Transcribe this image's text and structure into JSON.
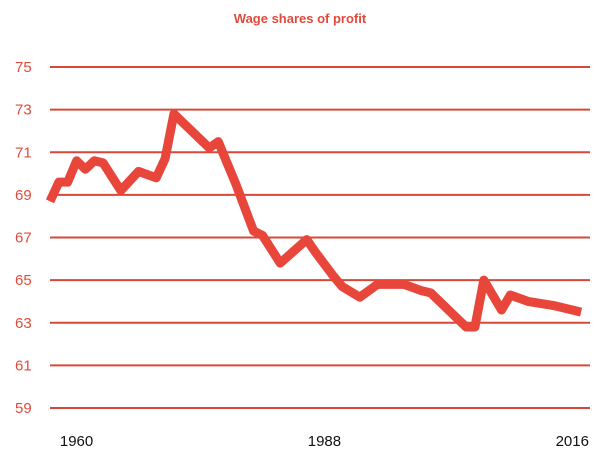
{
  "chart_data": {
    "type": "line",
    "title": "Wage shares of profit",
    "xlabel": "",
    "ylabel": "",
    "grid": true,
    "legend": "none",
    "color": "#e8463b",
    "xlim": [
      1957,
      2018
    ],
    "ylim": [
      59,
      75
    ],
    "yticks": [
      75,
      73,
      71,
      69,
      67,
      65,
      63,
      61,
      59
    ],
    "xticks": [
      1960,
      1988,
      2016
    ],
    "series": [
      {
        "x": [
          1957,
          1958,
          1959,
          1960,
          1961,
          1962,
          1963,
          1965,
          1967,
          1969,
          1970,
          1971,
          1975,
          1976,
          1978,
          1980,
          1981,
          1983,
          1986,
          1987,
          1989,
          1990,
          1992,
          1994,
          1995,
          1997,
          1999,
          2000,
          2004,
          2005,
          2006,
          2008,
          2009,
          2011,
          2014,
          2016,
          2017
        ],
        "y": [
          68.7,
          69.6,
          69.6,
          70.6,
          70.2,
          70.6,
          70.5,
          69.2,
          70.1,
          69.8,
          70.7,
          72.8,
          71.2,
          71.5,
          69.5,
          67.3,
          67.1,
          65.8,
          66.9,
          66.3,
          65.2,
          64.7,
          64.2,
          64.8,
          64.8,
          64.8,
          64.5,
          64.4,
          62.8,
          62.8,
          65.0,
          63.6,
          64.3,
          64.0,
          63.8,
          63.6,
          63.5
        ]
      }
    ]
  }
}
